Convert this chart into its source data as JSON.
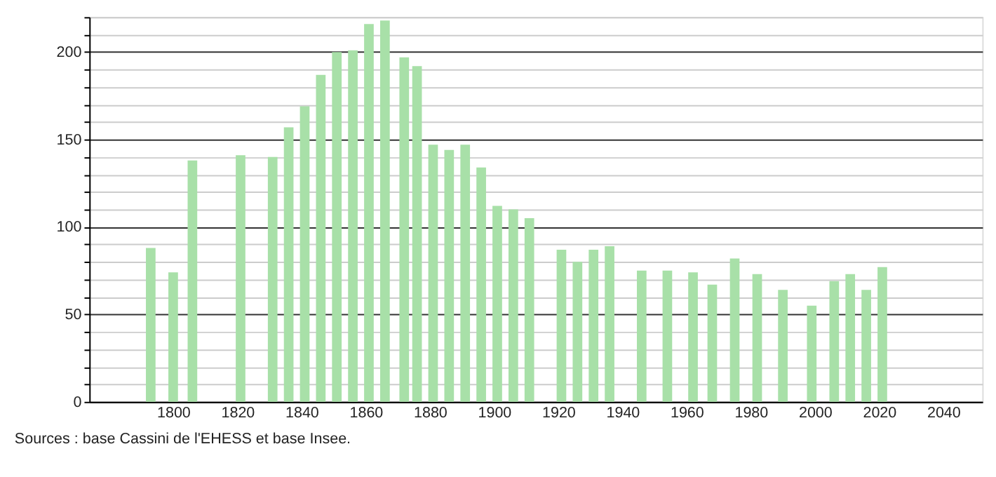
{
  "chart_data": {
    "type": "bar",
    "x": [
      1793,
      1800,
      1806,
      1821,
      1831,
      1836,
      1841,
      1846,
      1851,
      1856,
      1861,
      1866,
      1872,
      1876,
      1881,
      1886,
      1891,
      1896,
      1901,
      1906,
      1911,
      1921,
      1926,
      1931,
      1936,
      1946,
      1954,
      1962,
      1968,
      1975,
      1982,
      1990,
      1999,
      2006,
      2011,
      2016,
      2021
    ],
    "values": [
      88,
      74,
      138,
      141,
      140,
      157,
      169,
      187,
      200,
      201,
      216,
      218,
      197,
      192,
      147,
      144,
      147,
      134,
      112,
      110,
      105,
      87,
      80,
      87,
      89,
      75,
      75,
      74,
      67,
      82,
      73,
      64,
      55,
      69,
      73,
      64,
      77
    ],
    "color": "#a8e0a8",
    "xlim": [
      1776,
      2050
    ],
    "xticks": [
      1800,
      1820,
      1840,
      1860,
      1880,
      1900,
      1920,
      1940,
      1960,
      1980,
      2000,
      2020,
      2040
    ],
    "ylim": [
      0,
      220
    ],
    "yticks": [
      0,
      {
        "value": 10,
        "label": null
      },
      {
        "value": 20,
        "label": null
      },
      {
        "value": 30,
        "label": null
      },
      {
        "value": 40,
        "label": null
      },
      50,
      {
        "value": 60,
        "label": null
      },
      {
        "value": 70,
        "label": null
      },
      {
        "value": 80,
        "label": null
      },
      {
        "value": 90,
        "label": null
      },
      100,
      {
        "value": 110,
        "label": null
      },
      {
        "value": 120,
        "label": null
      },
      {
        "value": 130,
        "label": null
      },
      {
        "value": 140,
        "label": null
      },
      150,
      {
        "value": 160,
        "label": null
      },
      {
        "value": 170,
        "label": null
      },
      {
        "value": 180,
        "label": null
      },
      {
        "value": 190,
        "label": null
      },
      200,
      {
        "value": 210,
        "label": null
      },
      {
        "value": 220,
        "label": null
      }
    ],
    "grid": "y",
    "annotations": [
      "Sources : base Cassini de l'EHESS et base Insee."
    ]
  }
}
